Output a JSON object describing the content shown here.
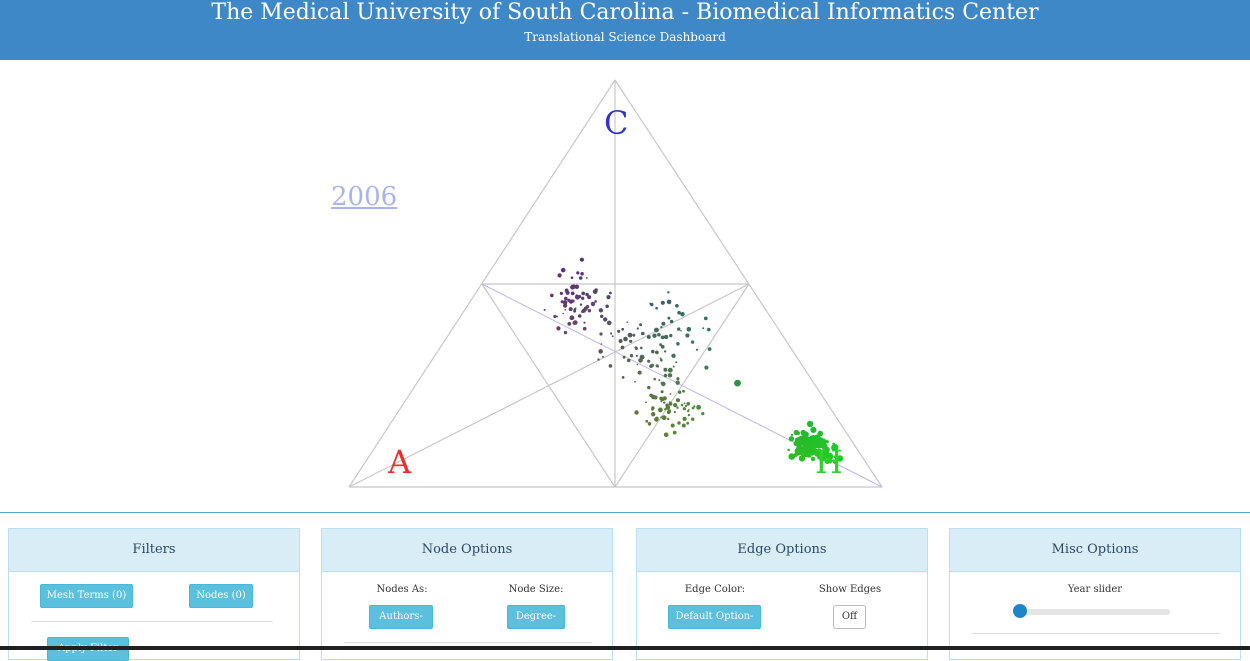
{
  "header": {
    "title": "The Medical University of South Carolina - Biomedical Informatics Center",
    "subtitle": "Translational Science Dashboard"
  },
  "viz": {
    "year": "2006",
    "corners": {
      "a": "A",
      "c": "C",
      "h": "H"
    },
    "colors": {
      "a": "#e63030",
      "c": "#3535c8",
      "h": "#30d030",
      "edge": "#c8c8c8"
    }
  },
  "panels": {
    "filters": {
      "title": "Filters",
      "mesh_terms": "Mesh Terms (0)",
      "nodes": "Nodes (0)",
      "apply": "Apply Filter"
    },
    "node_options": {
      "title": "Node Options",
      "nodes_as_label": "Nodes As:",
      "nodes_as_value": "Authors",
      "node_size_label": "Node Size:",
      "node_size_value": "Degree"
    },
    "edge_options": {
      "title": "Edge Options",
      "edge_color_label": "Edge Color:",
      "edge_color_value": "Default Option",
      "show_edges_label": "Show Edges",
      "show_edges_value": "Off"
    },
    "misc_options": {
      "title": "Misc Options",
      "year_slider_label": "Year slider",
      "year_slider_position": 0
    }
  }
}
